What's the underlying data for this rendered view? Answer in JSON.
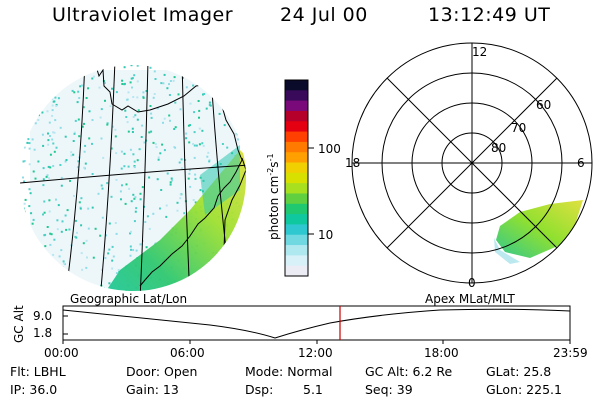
{
  "header": {
    "title": "Ultraviolet Imager",
    "date": "24 Jul 00",
    "time": "13:12:49 UT"
  },
  "colorbar": {
    "label": "photon cm",
    "label_exp1": "-2",
    "label_mid": "s",
    "label_exp2": "-1",
    "tick_100": "100",
    "tick_10": "10",
    "colors": [
      "#0a0a2a",
      "#3a0a5a",
      "#7a0a7a",
      "#b4002a",
      "#e40010",
      "#ff4000",
      "#ff7a00",
      "#ffa000",
      "#f0d000",
      "#d8e000",
      "#a8e020",
      "#60d040",
      "#20c870",
      "#10c8a0",
      "#30c8d0",
      "#70d8e0",
      "#b0e8f0",
      "#d8f0f8",
      "#ececf4"
    ]
  },
  "polar_plot": {
    "label_12": "12",
    "label_18": "18",
    "label_6": "6",
    "label_0": "0",
    "label_60": "60",
    "label_70": "70",
    "label_80": "80"
  },
  "timeline": {
    "left_caption": "Geographic Lat/Lon",
    "right_caption": "Apex MLat/MLT",
    "y_label": "GC Alt",
    "y_top": "9.0",
    "y_bottom": "1.8",
    "ticks": [
      "00:00",
      "06:00",
      "12:00",
      "18:00",
      "23:59"
    ],
    "current_marker_color": "#cc0000"
  },
  "status": {
    "flt": "Flt: LBHL",
    "ip": "IP: 36.0",
    "door": "Door: Open",
    "gain": "Gain: 13",
    "mode": "Mode: Normal",
    "dsp_label": "Dsp:",
    "dsp_value": "5.1",
    "gc_alt": "GC Alt: 6.2 Re",
    "seq": "Seq: 39",
    "glat": "GLat: 25.8",
    "glon": "GLon: 225.1"
  }
}
